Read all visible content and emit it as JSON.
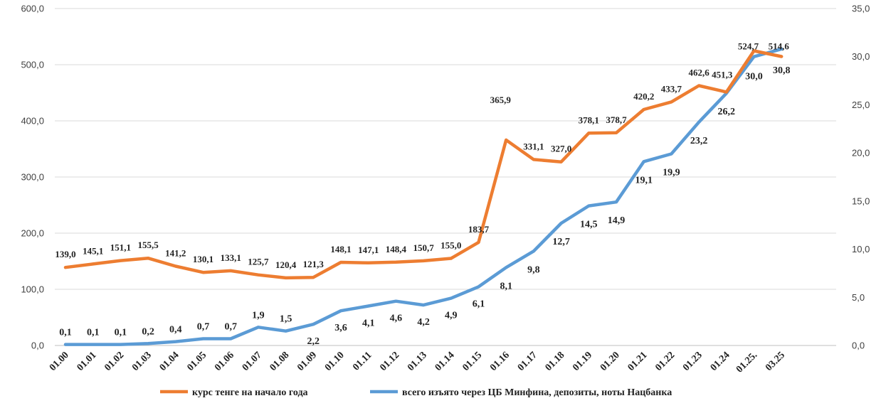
{
  "chart_data": {
    "type": "line",
    "title": "",
    "categories": [
      "01.00",
      "01.01",
      "01.02",
      "01.03",
      "01.04",
      "01.05",
      "01.06",
      "01.07",
      "01.08",
      "01.09",
      "01.10",
      "01.11",
      "01.12",
      "01.13",
      "01.14",
      "01.15",
      "01.16",
      "01.17",
      "01.18",
      "01.19",
      "01.20",
      "01.21",
      "01.22",
      "01.23",
      "01.24",
      "01.25.",
      "03.25"
    ],
    "y_left": {
      "ticks": [
        "0,0",
        "100,0",
        "200,0",
        "300,0",
        "400,0",
        "500,0",
        "600,0"
      ],
      "range": [
        0,
        600
      ]
    },
    "y_right": {
      "ticks": [
        "0,0",
        "5,0",
        "10,0",
        "15,0",
        "20,0",
        "25,0",
        "30,0",
        "35,0"
      ],
      "range": [
        0,
        35
      ]
    },
    "grid": "horizontal",
    "legend_position": "bottom",
    "series": [
      {
        "name": "курс тенге на начало года",
        "axis": "left",
        "color": "#ED7D31",
        "values": [
          139.0,
          145.1,
          151.1,
          155.5,
          141.2,
          130.1,
          133.1,
          125.7,
          120.4,
          121.3,
          148.1,
          147.1,
          148.4,
          150.7,
          155.0,
          183.7,
          365.9,
          331.1,
          327.0,
          378.1,
          378.7,
          420.2,
          433.7,
          462.6,
          451.3,
          524.7,
          514.6
        ],
        "labels": [
          "139,0",
          "145,1",
          "151,1",
          "155,5",
          "141,2",
          "130,1",
          "133,1",
          "125,7",
          "120,4",
          "121,3",
          "148,1",
          "147,1",
          "148,4",
          "150,7",
          "155,0",
          "183,7",
          "365,9",
          "331,1",
          "327,0",
          "378,1",
          "378,7",
          "420,2",
          "433,7",
          "462,6",
          "451,3",
          "524,7",
          "514,6"
        ]
      },
      {
        "name": "всего изъято через ЦБ Минфина, депозиты, ноты Нацбанка",
        "axis": "right",
        "color": "#5B9BD5",
        "values": [
          0.1,
          0.1,
          0.1,
          0.2,
          0.4,
          0.7,
          0.7,
          1.9,
          1.5,
          2.2,
          3.6,
          4.1,
          4.6,
          4.2,
          4.9,
          6.1,
          8.1,
          9.8,
          12.7,
          14.5,
          14.9,
          19.1,
          19.9,
          23.2,
          26.2,
          30.0,
          30.8
        ],
        "labels": [
          "0,1",
          "0,1",
          "0,1",
          "0,2",
          "0,4",
          "0,7",
          "0,7",
          "1,9",
          "1,5",
          "2,2",
          "3,6",
          "4,1",
          "4,6",
          "4,2",
          "4,9",
          "6,1",
          "8,1",
          "9,8",
          "12,7",
          "14,5",
          "14,9",
          "19,1",
          "19,9",
          "23,2",
          "26,2",
          "30,0",
          "30,8"
        ]
      }
    ]
  }
}
